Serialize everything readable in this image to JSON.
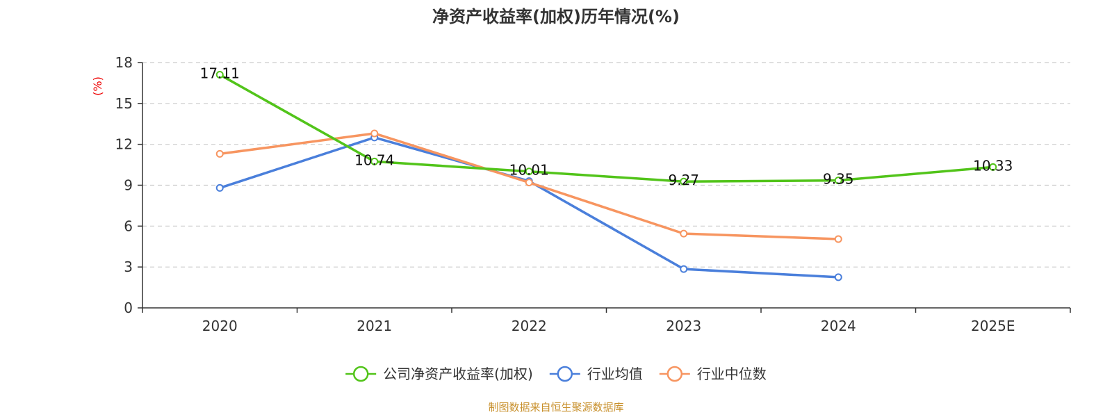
{
  "chart_data": {
    "type": "line",
    "title": "净资产收益率(加权)历年情况(%)",
    "xlabel": "",
    "ylabel": "(%)",
    "categories": [
      "2020",
      "2021",
      "2022",
      "2023",
      "2024",
      "2025E"
    ],
    "ylim": [
      0,
      18
    ],
    "yticks": [
      0,
      3,
      6,
      9,
      12,
      15,
      18
    ],
    "grid": true,
    "legend_position": "bottom",
    "series": [
      {
        "name": "公司净资产收益率(加权)",
        "color": "#52c41a",
        "values": [
          17.11,
          10.74,
          10.01,
          9.27,
          9.35,
          10.33
        ],
        "labels": [
          "17.11",
          "10.74",
          "10.01",
          "9.27",
          "9.35",
          "10.33"
        ],
        "show_labels": true
      },
      {
        "name": "行业均值",
        "color": "#4a7fdb",
        "values": [
          8.8,
          12.5,
          9.3,
          2.85,
          2.25,
          null
        ],
        "show_labels": false
      },
      {
        "name": "行业中位数",
        "color": "#f79560",
        "values": [
          11.3,
          12.8,
          9.2,
          5.45,
          5.05,
          null
        ],
        "show_labels": false
      }
    ],
    "source": "制图数据来自恒生聚源数据库"
  }
}
